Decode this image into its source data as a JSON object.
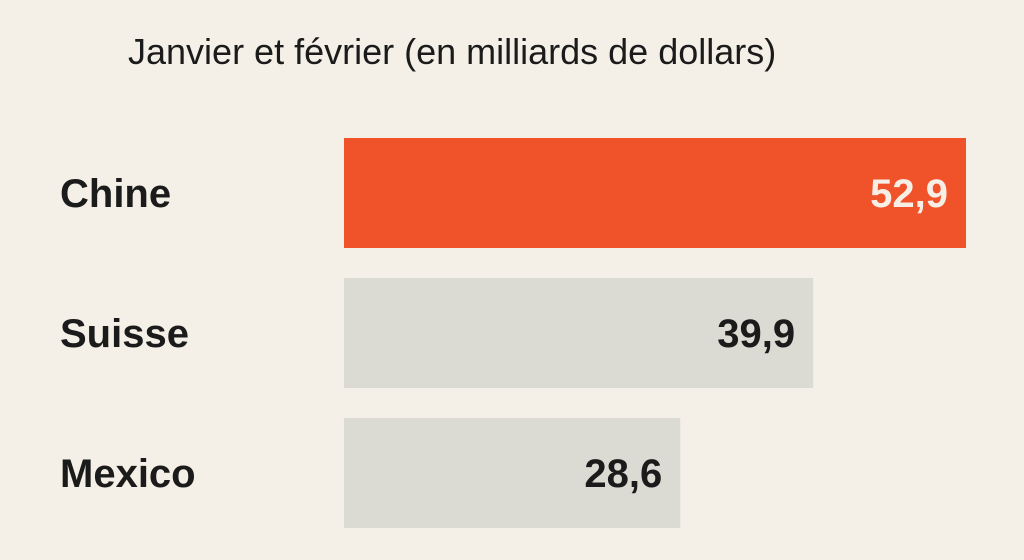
{
  "chart_data": {
    "type": "bar",
    "orientation": "horizontal",
    "title": "Janvier et février (en milliards de dollars)",
    "categories": [
      "Chine",
      "Suisse",
      "Mexico"
    ],
    "values": [
      52.9,
      39.9,
      28.6
    ],
    "value_labels": [
      "52,9",
      "39,9",
      "28,6"
    ],
    "colors": {
      "highlight": "#f0522a",
      "default": "#dcdbd3",
      "background": "#f5f0e7",
      "label_on_highlight": "#f7eee6",
      "label_default": "#1b1b1b"
    },
    "highlight_index": 0,
    "xlabel": "",
    "ylabel": "",
    "xlim": [
      0,
      52.9
    ],
    "grid": false,
    "legend": "none"
  }
}
